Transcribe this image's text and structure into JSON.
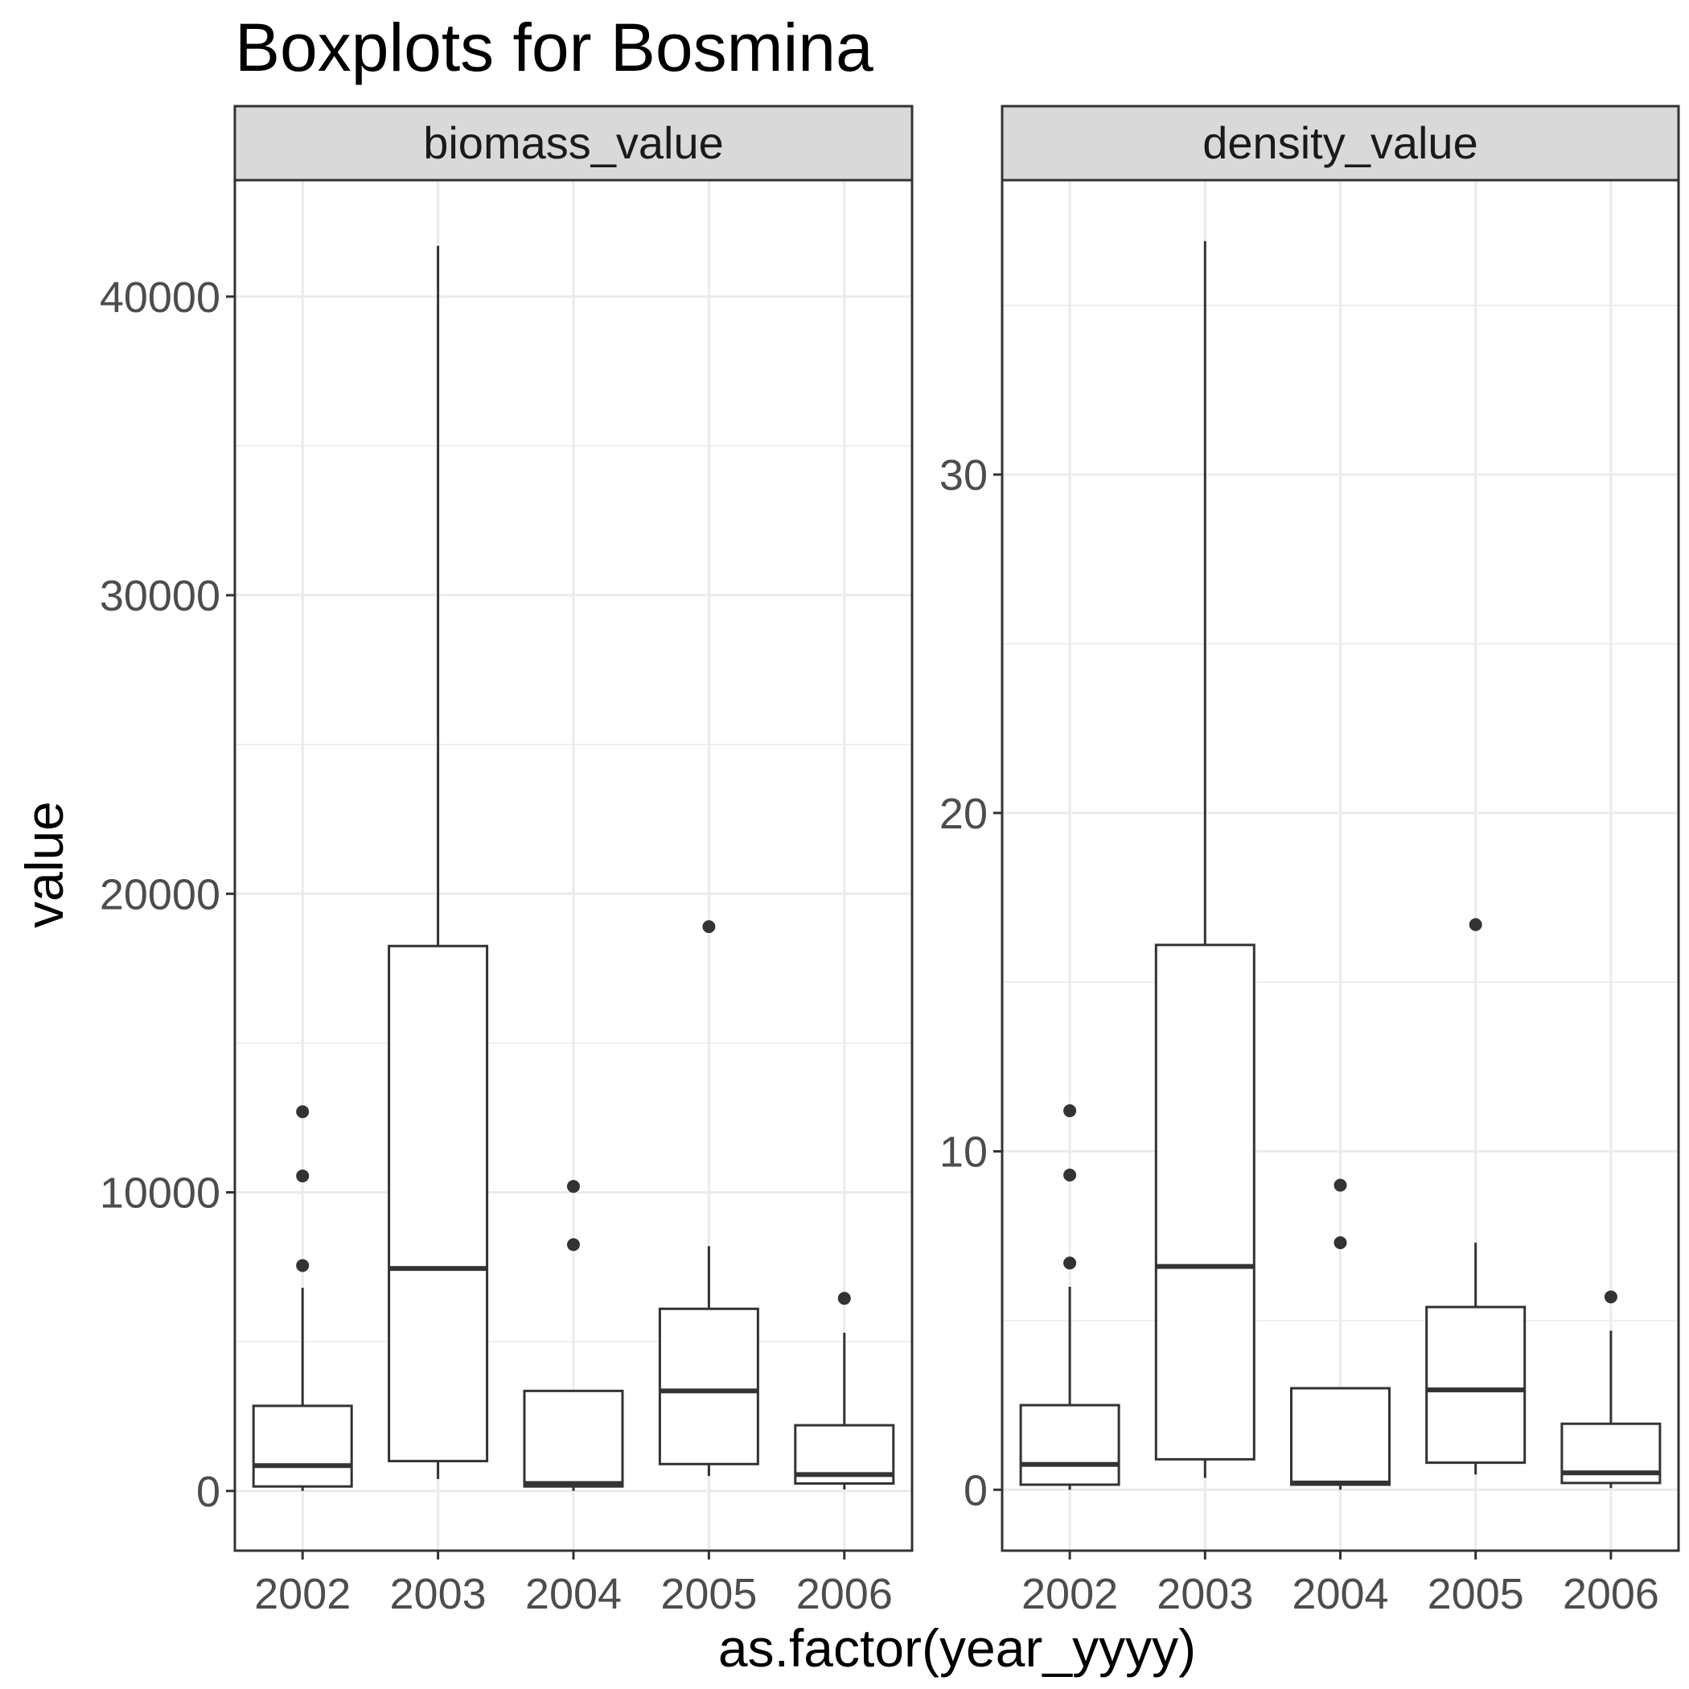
{
  "chart_data": {
    "type": "boxplot",
    "title": "Boxplots for Bosmina",
    "xlabel": "as.factor(year_yyyy)",
    "ylabel": "value",
    "categories": [
      "2002",
      "2003",
      "2004",
      "2005",
      "2006"
    ],
    "grid": true,
    "legend": "none",
    "colors": {
      "background": "#ffffff",
      "grid": "#ebebeb",
      "panel_border": "#333333",
      "strip_fill": "#d9d9d9",
      "box_stroke": "#333333",
      "outlier": "#333333"
    },
    "facets": [
      {
        "label": "biomass_value",
        "ylim": [
          -2000,
          43900
        ],
        "yticks": [
          0,
          10000,
          20000,
          30000,
          40000
        ],
        "ytick_labels": [
          "0",
          "10000",
          "20000",
          "30000",
          "40000"
        ],
        "boxes": [
          {
            "category": "2002",
            "whisker_low": 0,
            "q1": 150,
            "median": 850,
            "q3": 2850,
            "whisker_high": 6800,
            "outliers": [
              7550,
              10550,
              12700
            ]
          },
          {
            "category": "2003",
            "whisker_low": 400,
            "q1": 1000,
            "median": 7450,
            "q3": 18250,
            "whisker_high": 41700,
            "outliers": []
          },
          {
            "category": "2004",
            "whisker_low": 0,
            "q1": 150,
            "median": 250,
            "q3": 3350,
            "whisker_high": 3350,
            "outliers": [
              8250,
              10200
            ]
          },
          {
            "category": "2005",
            "whisker_low": 500,
            "q1": 900,
            "median": 3350,
            "q3": 6100,
            "whisker_high": 8200,
            "outliers": [
              18900
            ]
          },
          {
            "category": "2006",
            "whisker_low": 50,
            "q1": 250,
            "median": 550,
            "q3": 2200,
            "whisker_high": 5300,
            "outliers": [
              6450
            ]
          }
        ]
      },
      {
        "label": "density_value",
        "ylim": [
          -1.8,
          38.7
        ],
        "yticks": [
          0,
          10,
          20,
          30
        ],
        "ytick_labels": [
          "0",
          "10",
          "20",
          "30"
        ],
        "boxes": [
          {
            "category": "2002",
            "whisker_low": 0,
            "q1": 0.15,
            "median": 0.75,
            "q3": 2.5,
            "whisker_high": 6.0,
            "outliers": [
              6.7,
              9.3,
              11.2
            ]
          },
          {
            "category": "2003",
            "whisker_low": 0.35,
            "q1": 0.9,
            "median": 6.6,
            "q3": 16.1,
            "whisker_high": 36.9,
            "outliers": []
          },
          {
            "category": "2004",
            "whisker_low": 0,
            "q1": 0.15,
            "median": 0.2,
            "q3": 3.0,
            "whisker_high": 3.0,
            "outliers": [
              7.3,
              9.0
            ]
          },
          {
            "category": "2005",
            "whisker_low": 0.45,
            "q1": 0.8,
            "median": 2.95,
            "q3": 5.4,
            "whisker_high": 7.3,
            "outliers": [
              16.7
            ]
          },
          {
            "category": "2006",
            "whisker_low": 0.05,
            "q1": 0.2,
            "median": 0.5,
            "q3": 1.95,
            "whisker_high": 4.7,
            "outliers": [
              5.7
            ]
          }
        ]
      }
    ]
  }
}
